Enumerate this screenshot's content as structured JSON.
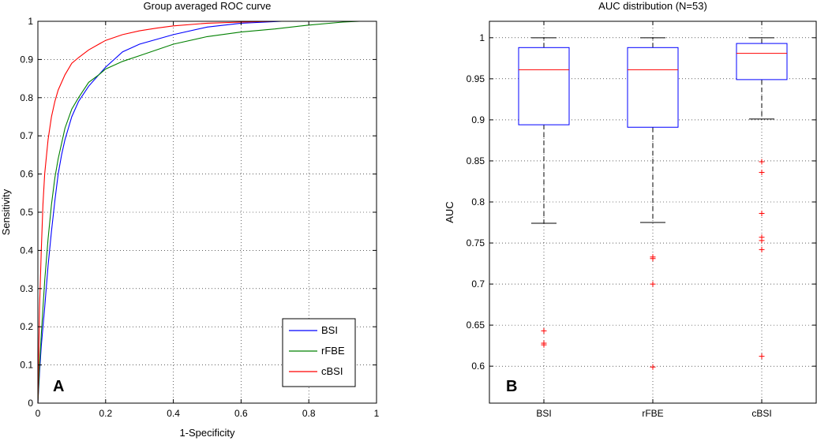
{
  "chart_data": [
    {
      "type": "line",
      "panel_label": "A",
      "title": "Group averaged ROC curve",
      "xlabel": "1-Specificity",
      "ylabel": "Sensitivity",
      "xlim": [
        0,
        1
      ],
      "ylim": [
        0,
        1
      ],
      "xticks": [
        "0",
        "0.2",
        "0.4",
        "0.6",
        "0.8",
        "1"
      ],
      "yticks": [
        "0",
        "0.1",
        "0.2",
        "0.3",
        "0.4",
        "0.5",
        "0.6",
        "0.7",
        "0.8",
        "0.9",
        "1"
      ],
      "grid": true,
      "legend_position": "bottom-right",
      "series": [
        {
          "name": "BSI",
          "color": "#0000ff",
          "x": [
            0,
            0.005,
            0.01,
            0.02,
            0.03,
            0.04,
            0.05,
            0.06,
            0.07,
            0.08,
            0.09,
            0.1,
            0.12,
            0.15,
            0.18,
            0.2,
            0.25,
            0.3,
            0.4,
            0.5,
            0.6,
            0.72
          ],
          "y": [
            0,
            0.08,
            0.15,
            0.25,
            0.36,
            0.45,
            0.53,
            0.6,
            0.65,
            0.69,
            0.72,
            0.75,
            0.79,
            0.83,
            0.86,
            0.88,
            0.92,
            0.94,
            0.965,
            0.985,
            0.995,
            1.0
          ]
        },
        {
          "name": "rFBE",
          "color": "#008000",
          "x": [
            0,
            0.005,
            0.01,
            0.02,
            0.03,
            0.04,
            0.05,
            0.06,
            0.07,
            0.08,
            0.1,
            0.12,
            0.15,
            0.18,
            0.2,
            0.25,
            0.3,
            0.4,
            0.5,
            0.6,
            0.7,
            0.8,
            0.9,
            0.95
          ],
          "y": [
            0,
            0.1,
            0.18,
            0.32,
            0.43,
            0.52,
            0.59,
            0.64,
            0.68,
            0.72,
            0.77,
            0.8,
            0.84,
            0.86,
            0.875,
            0.895,
            0.91,
            0.94,
            0.96,
            0.972,
            0.98,
            0.99,
            0.998,
            1.0
          ]
        },
        {
          "name": "cBSI",
          "color": "#ff0000",
          "x": [
            0,
            0.005,
            0.01,
            0.015,
            0.02,
            0.03,
            0.04,
            0.05,
            0.06,
            0.08,
            0.1,
            0.12,
            0.15,
            0.18,
            0.2,
            0.25,
            0.3,
            0.35,
            0.4,
            0.5,
            0.6,
            0.7
          ],
          "y": [
            0,
            0.25,
            0.4,
            0.52,
            0.6,
            0.69,
            0.75,
            0.79,
            0.82,
            0.86,
            0.89,
            0.905,
            0.925,
            0.94,
            0.95,
            0.965,
            0.975,
            0.982,
            0.988,
            0.995,
            0.998,
            1.0
          ]
        }
      ]
    },
    {
      "type": "box",
      "panel_label": "B",
      "title": "AUC distribution (N=53)",
      "xlabel": "",
      "ylabel": "AUC",
      "ylim": [
        0.555,
        1.02
      ],
      "yticks": [
        "0.6",
        "0.65",
        "0.7",
        "0.75",
        "0.8",
        "0.85",
        "0.9",
        "0.95",
        "1"
      ],
      "grid": true,
      "box_color": "#0000ff",
      "median_color": "#ff0000",
      "whisker_color": "#000000",
      "outlier_color": "#ff0000",
      "categories": [
        "BSI",
        "rFBE",
        "cBSI"
      ],
      "boxes": [
        {
          "label": "BSI",
          "whisker_low": 0.774,
          "q1": 0.894,
          "median": 0.961,
          "q3": 0.988,
          "whisker_high": 1.0,
          "outliers": [
            0.643,
            0.628,
            0.626
          ]
        },
        {
          "label": "rFBE",
          "whisker_low": 0.775,
          "q1": 0.891,
          "median": 0.961,
          "q3": 0.988,
          "whisker_high": 1.0,
          "outliers": [
            0.733,
            0.731,
            0.7,
            0.599
          ]
        },
        {
          "label": "cBSI",
          "whisker_low": 0.901,
          "q1": 0.949,
          "median": 0.981,
          "q3": 0.993,
          "whisker_high": 1.0,
          "outliers": [
            0.849,
            0.836,
            0.786,
            0.757,
            0.753,
            0.742,
            0.612
          ]
        }
      ]
    }
  ]
}
